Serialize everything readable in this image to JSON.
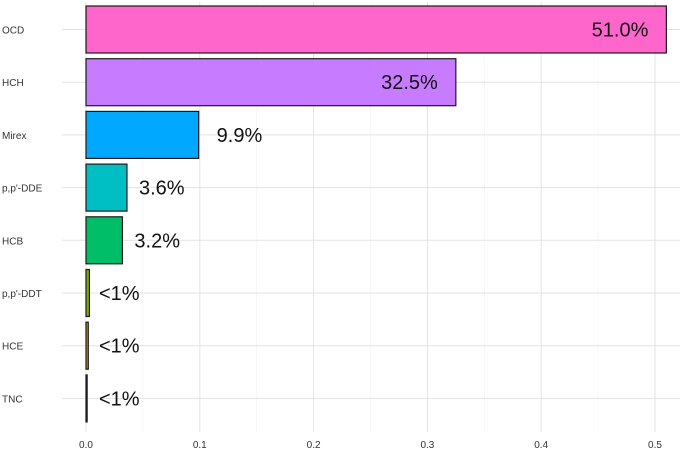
{
  "chart_data": {
    "type": "bar",
    "orientation": "horizontal",
    "categories": [
      "OCD",
      "HCH",
      "Mirex",
      "p,p'-DDE",
      "HCB",
      "p,p'-DDT",
      "HCE",
      "TNC"
    ],
    "values": [
      0.51,
      0.325,
      0.099,
      0.036,
      0.032,
      0.003,
      0.002,
      0.001
    ],
    "data_labels": [
      "51.0%",
      "32.5%",
      "9.9%",
      "3.6%",
      "3.2%",
      "<1%",
      "<1%",
      "<1%"
    ],
    "colors": [
      "#ff66cc",
      "#c77cff",
      "#00a9ff",
      "#00bfc4",
      "#00be67",
      "#7cae00",
      "#cd9600",
      "#f8766d"
    ],
    "title": "",
    "xlabel": "",
    "ylabel": "",
    "xlim": [
      0,
      0.52
    ],
    "x_ticks": [
      0.0,
      0.1,
      0.2,
      0.3,
      0.4,
      0.5
    ],
    "x_tick_labels": [
      "0.0",
      "0.1",
      "0.2",
      "0.3",
      "0.4",
      "0.5"
    ],
    "grid": true,
    "legend": "none"
  }
}
